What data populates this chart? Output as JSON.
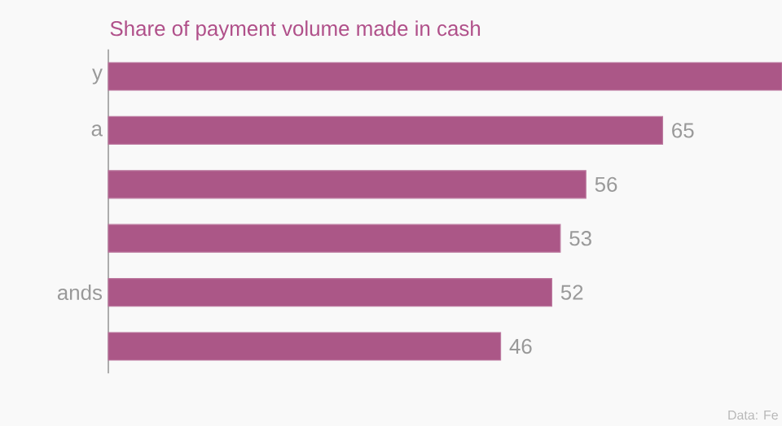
{
  "chart_data": {
    "type": "bar",
    "orientation": "horizontal",
    "title": "Share of payment volume made in cash",
    "categories": [
      "y",
      "a",
      null,
      null,
      "ands",
      null
    ],
    "values": [
      79,
      65,
      56,
      53,
      52,
      46
    ],
    "value_labels": [
      null,
      "65",
      "56",
      "53",
      "52",
      "46"
    ],
    "color": "#ab5787",
    "xlim": [
      0,
      79
    ],
    "tick_labels": "y",
    "annotations": [
      "Data: Fe"
    ]
  }
}
